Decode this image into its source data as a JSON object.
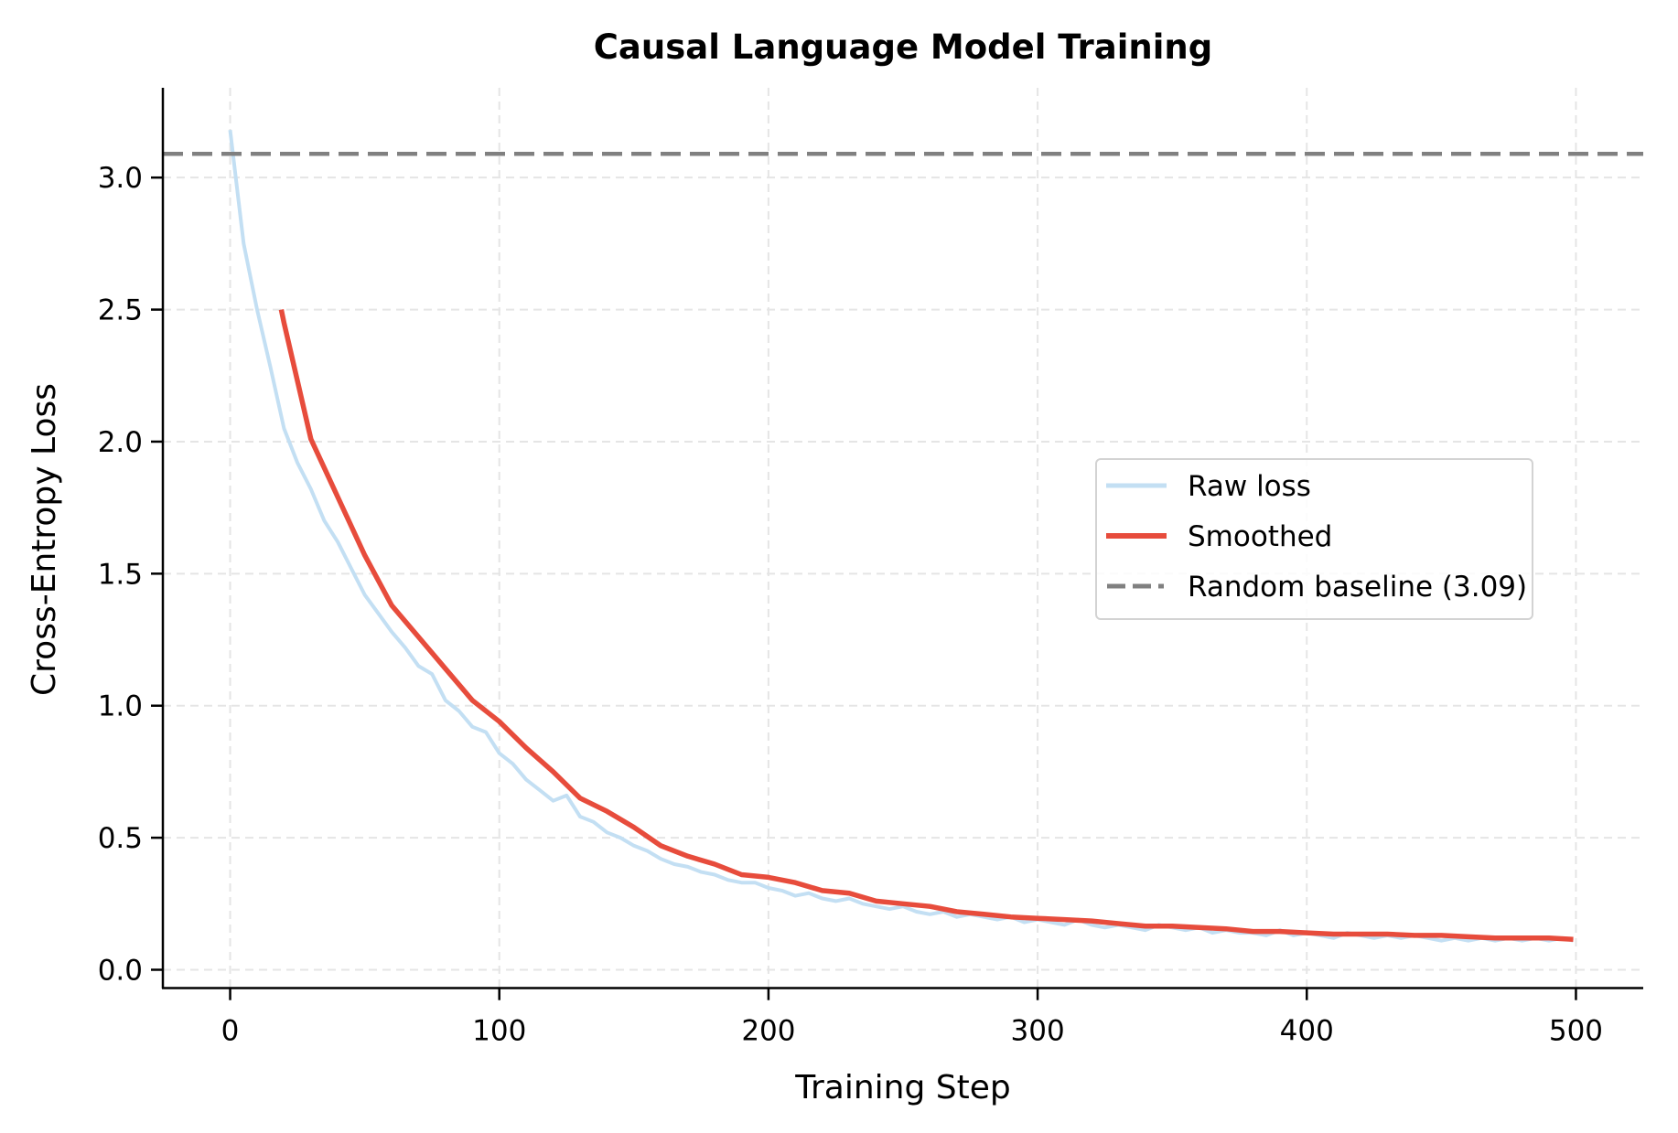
{
  "chart_data": {
    "type": "line",
    "title": "Causal Language Model Training",
    "xlabel": "Training Step",
    "ylabel": "Cross-Entropy Loss",
    "xlim": [
      -25,
      525
    ],
    "ylim": [
      -0.07,
      3.34
    ],
    "xticks": [
      0,
      100,
      200,
      300,
      400,
      500
    ],
    "xtick_labels": [
      "0",
      "100",
      "200",
      "300",
      "400",
      "500"
    ],
    "yticks": [
      0.0,
      0.5,
      1.0,
      1.5,
      2.0,
      2.5,
      3.0
    ],
    "ytick_labels": [
      "0.0",
      "0.5",
      "1.0",
      "1.5",
      "2.0",
      "2.5",
      "3.0"
    ],
    "grid": true,
    "legend_position": "center-right",
    "series": [
      {
        "name": "Raw loss",
        "color": "#c3dff3",
        "x": [
          0,
          5,
          10,
          15,
          20,
          25,
          30,
          35,
          40,
          45,
          50,
          55,
          60,
          65,
          70,
          75,
          80,
          85,
          90,
          95,
          100,
          105,
          110,
          115,
          120,
          125,
          130,
          135,
          140,
          145,
          150,
          155,
          160,
          165,
          170,
          175,
          180,
          185,
          190,
          195,
          200,
          205,
          210,
          215,
          220,
          225,
          230,
          235,
          240,
          245,
          250,
          255,
          260,
          265,
          270,
          275,
          280,
          285,
          290,
          295,
          300,
          305,
          310,
          315,
          320,
          325,
          330,
          335,
          340,
          345,
          350,
          355,
          360,
          365,
          370,
          375,
          380,
          385,
          390,
          395,
          400,
          405,
          410,
          415,
          420,
          425,
          430,
          435,
          440,
          445,
          450,
          455,
          460,
          465,
          470,
          475,
          480,
          485,
          490,
          495,
          499
        ],
        "y": [
          3.18,
          2.75,
          2.5,
          2.28,
          2.05,
          1.92,
          1.82,
          1.7,
          1.62,
          1.52,
          1.42,
          1.35,
          1.28,
          1.22,
          1.15,
          1.12,
          1.02,
          0.98,
          0.92,
          0.9,
          0.82,
          0.78,
          0.72,
          0.68,
          0.64,
          0.66,
          0.58,
          0.56,
          0.52,
          0.5,
          0.47,
          0.45,
          0.42,
          0.4,
          0.39,
          0.37,
          0.36,
          0.34,
          0.33,
          0.33,
          0.31,
          0.3,
          0.28,
          0.29,
          0.27,
          0.26,
          0.27,
          0.25,
          0.24,
          0.23,
          0.24,
          0.22,
          0.21,
          0.22,
          0.2,
          0.21,
          0.2,
          0.19,
          0.2,
          0.18,
          0.19,
          0.18,
          0.17,
          0.19,
          0.17,
          0.16,
          0.17,
          0.16,
          0.15,
          0.17,
          0.16,
          0.15,
          0.16,
          0.14,
          0.15,
          0.14,
          0.14,
          0.13,
          0.15,
          0.13,
          0.14,
          0.13,
          0.12,
          0.14,
          0.13,
          0.12,
          0.13,
          0.12,
          0.13,
          0.12,
          0.11,
          0.12,
          0.11,
          0.12,
          0.11,
          0.12,
          0.11,
          0.12,
          0.11,
          0.12,
          0.11
        ]
      },
      {
        "name": "Smoothed",
        "color": "#e74c3c",
        "x": [
          19,
          20,
          30,
          40,
          50,
          60,
          70,
          80,
          90,
          100,
          110,
          120,
          130,
          140,
          150,
          160,
          170,
          180,
          190,
          200,
          210,
          220,
          230,
          240,
          250,
          260,
          270,
          280,
          290,
          300,
          310,
          320,
          330,
          340,
          350,
          360,
          370,
          380,
          390,
          400,
          410,
          420,
          430,
          440,
          450,
          460,
          470,
          480,
          490,
          499
        ],
        "y": [
          2.5,
          2.45,
          2.01,
          1.79,
          1.57,
          1.38,
          1.26,
          1.14,
          1.02,
          0.94,
          0.84,
          0.75,
          0.65,
          0.6,
          0.54,
          0.47,
          0.43,
          0.4,
          0.36,
          0.35,
          0.33,
          0.3,
          0.29,
          0.26,
          0.25,
          0.24,
          0.22,
          0.21,
          0.2,
          0.195,
          0.19,
          0.185,
          0.175,
          0.165,
          0.165,
          0.16,
          0.155,
          0.145,
          0.145,
          0.14,
          0.135,
          0.135,
          0.135,
          0.13,
          0.13,
          0.125,
          0.12,
          0.12,
          0.12,
          0.115
        ]
      },
      {
        "name": "Random baseline (3.09)",
        "color": "#808080",
        "style": "dashed",
        "y_constant": 3.09
      }
    ]
  }
}
